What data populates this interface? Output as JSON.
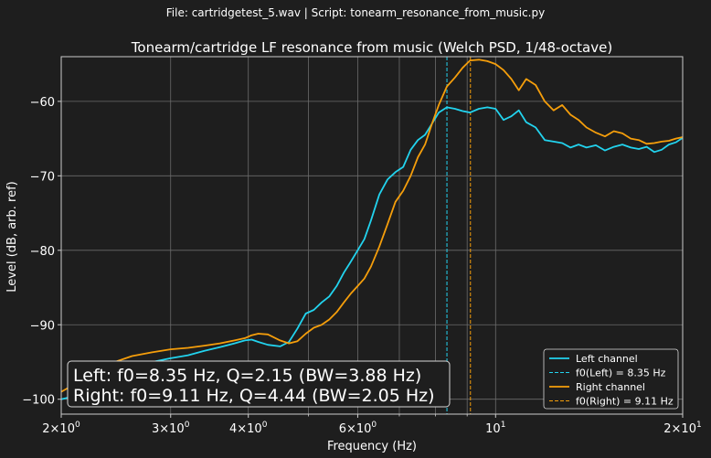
{
  "suptitle": "File: cartridgetest_5.wav    |    Script: tonearm_resonance_from_music.py",
  "chart_data": {
    "type": "line",
    "title": "Tonearm/cartridge LF resonance from music (Welch PSD, 1/48-octave)",
    "xlabel": "Frequency (Hz)",
    "ylabel": "Level (dB, arb. ref)",
    "xscale": "log",
    "xlim": [
      2,
      20
    ],
    "ylim": [
      -102,
      -54
    ],
    "grid": true,
    "x_ticks": [
      {
        "value": 2,
        "base": "2×10",
        "exp": "0"
      },
      {
        "value": 3,
        "base": "3×10",
        "exp": "0"
      },
      {
        "value": 4,
        "base": "4×10",
        "exp": "0"
      },
      {
        "value": 6,
        "base": "6×10",
        "exp": "0"
      },
      {
        "value": 10,
        "base": "10",
        "exp": "1"
      },
      {
        "value": 20,
        "base": "2×10",
        "exp": "1"
      }
    ],
    "y_ticks": [
      -60,
      -70,
      -80,
      -90,
      -100
    ],
    "y_tick_labels": [
      "−60",
      "−70",
      "−80",
      "−90",
      "−100"
    ],
    "series": [
      {
        "name": "Left channel",
        "color": "#22d3ee",
        "x": [
          2.0,
          2.1,
          2.2,
          2.4,
          2.6,
          2.8,
          3.0,
          3.2,
          3.4,
          3.6,
          3.8,
          3.95,
          4.05,
          4.15,
          4.3,
          4.5,
          4.65,
          4.8,
          4.95,
          5.1,
          5.25,
          5.4,
          5.55,
          5.7,
          5.85,
          6.0,
          6.15,
          6.3,
          6.5,
          6.7,
          6.9,
          7.1,
          7.3,
          7.5,
          7.7,
          7.9,
          8.1,
          8.35,
          8.6,
          8.85,
          9.1,
          9.4,
          9.7,
          10.0,
          10.3,
          10.6,
          10.9,
          11.2,
          11.6,
          12.0,
          12.4,
          12.8,
          13.2,
          13.6,
          14.0,
          14.5,
          15.0,
          15.5,
          16.0,
          16.5,
          17.0,
          17.5,
          18.0,
          18.5,
          19.0,
          19.5,
          20.0
        ],
        "values": [
          -100.0,
          -99.6,
          -99.0,
          -97.0,
          -95.8,
          -95.0,
          -94.5,
          -94.1,
          -93.5,
          -93.0,
          -92.5,
          -92.1,
          -92.0,
          -92.3,
          -92.7,
          -92.9,
          -92.3,
          -90.5,
          -88.5,
          -88.0,
          -87.0,
          -86.2,
          -84.8,
          -83.0,
          -81.5,
          -80.0,
          -78.5,
          -76.0,
          -72.5,
          -70.5,
          -69.5,
          -68.8,
          -66.5,
          -65.2,
          -64.5,
          -63.0,
          -61.5,
          -60.8,
          -61.0,
          -61.3,
          -61.5,
          -61.0,
          -60.8,
          -61.0,
          -62.5,
          -62.0,
          -61.2,
          -62.8,
          -63.5,
          -65.2,
          -65.4,
          -65.6,
          -66.2,
          -65.8,
          -66.2,
          -65.9,
          -66.6,
          -66.1,
          -65.8,
          -66.2,
          -66.4,
          -66.1,
          -66.8,
          -66.5,
          -65.8,
          -65.5,
          -64.9
        ]
      },
      {
        "name": "Right channel",
        "color": "#f59e0b",
        "x": [
          2.0,
          2.1,
          2.2,
          2.4,
          2.6,
          2.8,
          3.0,
          3.2,
          3.4,
          3.6,
          3.8,
          3.95,
          4.05,
          4.15,
          4.3,
          4.5,
          4.65,
          4.8,
          4.95,
          5.1,
          5.25,
          5.4,
          5.55,
          5.7,
          5.85,
          6.0,
          6.15,
          6.3,
          6.5,
          6.7,
          6.9,
          7.1,
          7.3,
          7.5,
          7.7,
          7.9,
          8.1,
          8.35,
          8.6,
          8.85,
          9.1,
          9.4,
          9.7,
          10.0,
          10.3,
          10.6,
          10.9,
          11.2,
          11.6,
          12.0,
          12.4,
          12.8,
          13.2,
          13.6,
          14.0,
          14.5,
          15.0,
          15.5,
          16.0,
          16.5,
          17.0,
          17.5,
          18.0,
          18.5,
          19.0,
          19.5,
          20.0
        ],
        "values": [
          -99.0,
          -98.0,
          -97.0,
          -95.2,
          -94.2,
          -93.7,
          -93.3,
          -93.1,
          -92.8,
          -92.5,
          -92.1,
          -91.8,
          -91.4,
          -91.2,
          -91.3,
          -92.1,
          -92.5,
          -92.2,
          -91.2,
          -90.4,
          -90.0,
          -89.3,
          -88.3,
          -87.0,
          -85.8,
          -84.8,
          -83.8,
          -82.2,
          -79.5,
          -76.5,
          -73.5,
          -72.0,
          -70.0,
          -67.5,
          -65.8,
          -63.0,
          -60.5,
          -58.0,
          -56.8,
          -55.5,
          -54.5,
          -54.4,
          -54.6,
          -55.0,
          -55.8,
          -57.0,
          -58.5,
          -57.0,
          -57.8,
          -60.0,
          -61.2,
          -60.5,
          -61.8,
          -62.5,
          -63.5,
          -64.2,
          -64.7,
          -64.0,
          -64.3,
          -65.0,
          -65.2,
          -65.7,
          -65.6,
          -65.4,
          -65.3,
          -65.0,
          -64.8
        ]
      }
    ],
    "vlines": [
      {
        "label": "f0(Left) = 8.35 Hz",
        "x": 8.35,
        "color": "#22d3ee"
      },
      {
        "label": "f0(Right) = 9.11 Hz",
        "x": 9.11,
        "color": "#f59e0b"
      }
    ],
    "legend_position": "lower right",
    "annotation": [
      "Left: f0=8.35 Hz, Q=2.15 (BW=3.88 Hz)",
      "Right: f0=9.11 Hz, Q=4.44 (BW=2.05 Hz)"
    ],
    "colors": {
      "background": "#1e1e1e",
      "grid": "#6b6b6b",
      "axes": "#cccccc"
    }
  }
}
